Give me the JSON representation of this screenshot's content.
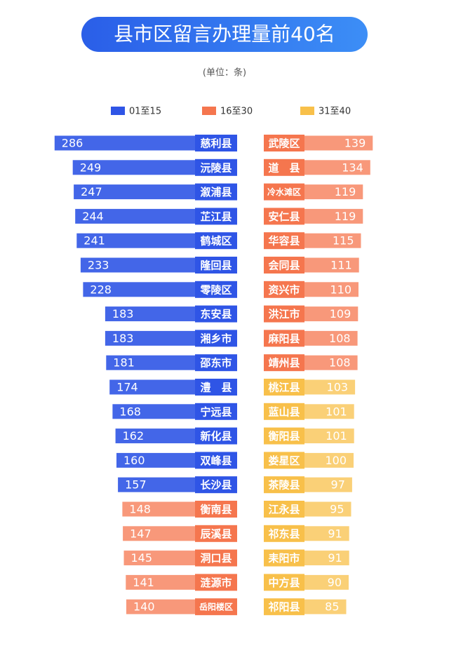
{
  "chart_data": {
    "type": "bar",
    "title": "县市区留言办理量前40名",
    "subtitle": "(单位：条)",
    "series": [
      {
        "name": "01至15",
        "color": "#2f55e6",
        "categories": [
          "慈利县",
          "沅陵县",
          "溆浦县",
          "芷江县",
          "鹤城区",
          "隆回县",
          "零陵区",
          "东安县",
          "湘乡市",
          "邵东市",
          "澧　县",
          "宁远县",
          "新化县",
          "双峰县",
          "长沙县"
        ],
        "values": [
          286,
          249,
          247,
          244,
          241,
          233,
          228,
          183,
          183,
          181,
          174,
          168,
          162,
          160,
          157
        ]
      },
      {
        "name": "16至30",
        "color": "#f5764e",
        "categories": [
          "衡南县",
          "辰溪县",
          "洞口县",
          "涟源市",
          "岳阳楼区",
          "武陵区",
          "道　县",
          "冷水滩区",
          "安仁县",
          "华容县",
          "会同县",
          "资兴市",
          "洪江市",
          "麻阳县",
          "靖州县"
        ],
        "values": [
          148,
          147,
          145,
          141,
          140,
          139,
          134,
          119,
          119,
          115,
          111,
          110,
          109,
          108,
          108
        ]
      },
      {
        "name": "31至40",
        "color": "#f8c04a",
        "categories": [
          "桃江县",
          "蓝山县",
          "衡阳县",
          "娄星区",
          "茶陵县",
          "江永县",
          "祁东县",
          "耒阳市",
          "中方县",
          "祁阳县"
        ],
        "values": [
          103,
          101,
          101,
          100,
          97,
          95,
          91,
          91,
          90,
          85
        ]
      }
    ]
  }
}
